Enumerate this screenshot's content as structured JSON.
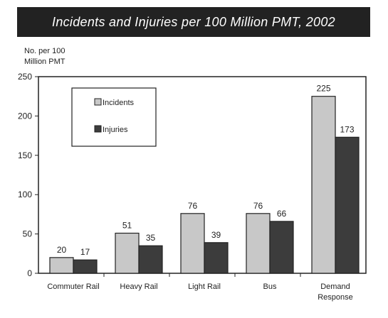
{
  "chart_data": {
    "type": "bar",
    "title": "Incidents and Injuries per 100 Million PMT, 2002",
    "ylabel_lines": [
      "No. per 100",
      "Million PMT"
    ],
    "categories": [
      [
        "Commuter Rail"
      ],
      [
        "Heavy Rail"
      ],
      [
        "Light Rail"
      ],
      [
        "Bus"
      ],
      [
        "Demand",
        "Response"
      ]
    ],
    "series": [
      {
        "name": "Incidents",
        "values": [
          20,
          51,
          76,
          76,
          225
        ],
        "color": "#c8c8c8"
      },
      {
        "name": "Injuries",
        "values": [
          17,
          35,
          39,
          66,
          173
        ],
        "color": "#3c3c3c"
      }
    ],
    "ylim": [
      0,
      250
    ],
    "yticks": [
      0,
      50,
      100,
      150,
      200,
      250
    ],
    "legend_position": "top-left",
    "grid": false
  }
}
